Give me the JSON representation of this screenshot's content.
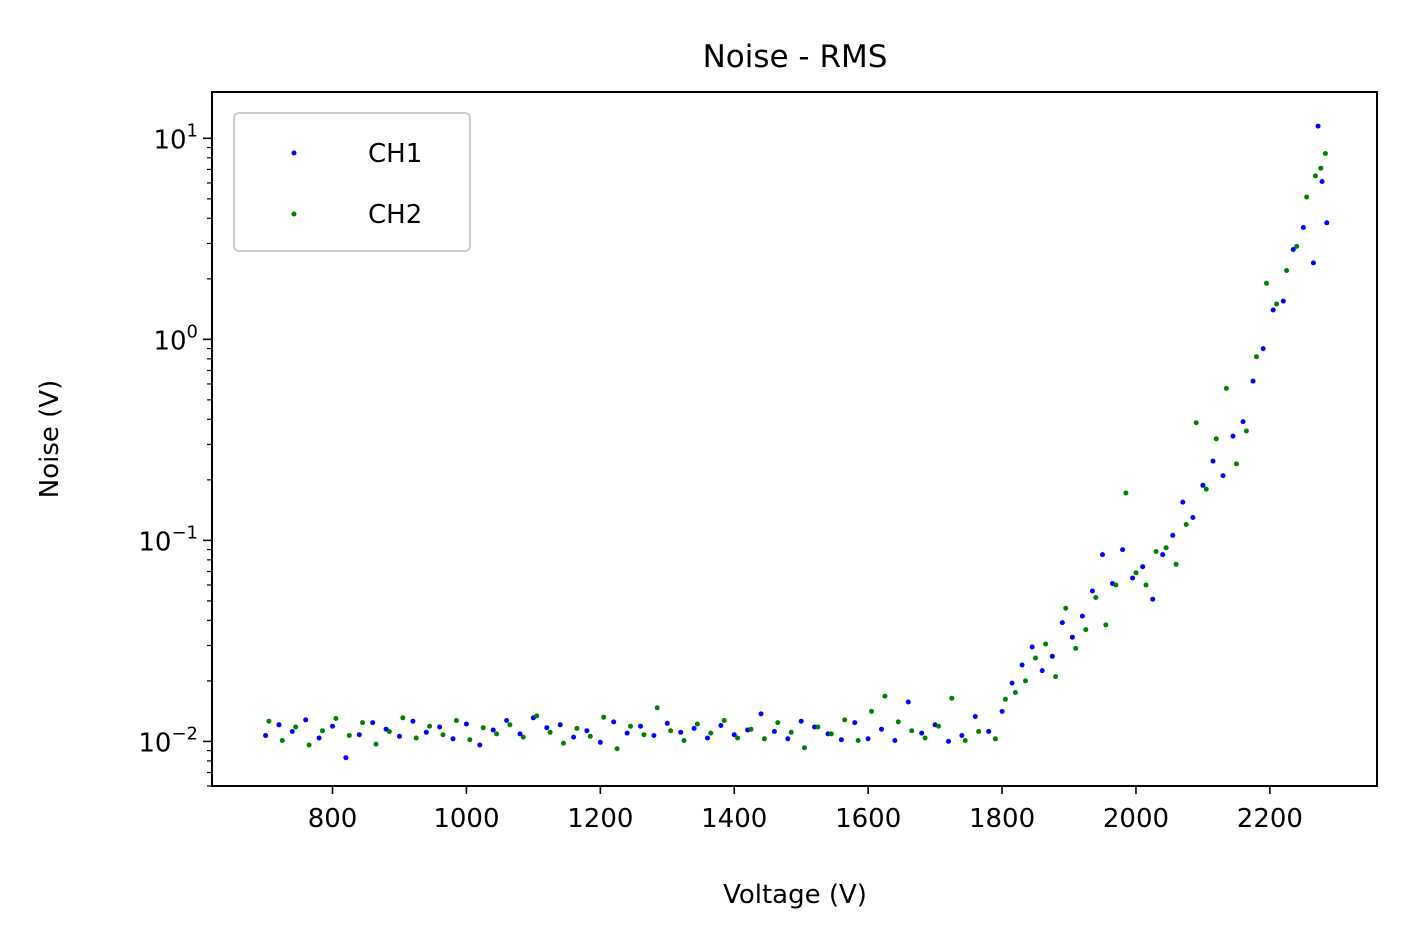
{
  "chart_data": {
    "type": "scatter",
    "title": "Noise - RMS",
    "xlabel": "Voltage (V)",
    "ylabel": "Noise (V)",
    "xlim": [
      620,
      2360
    ],
    "ylim": [
      0.006,
      17
    ],
    "yscale": "log",
    "xticks": [
      800,
      1000,
      1200,
      1400,
      1600,
      1800,
      2000,
      2200
    ],
    "yticks": [
      {
        "value": 0.01,
        "base": "10",
        "exp": "−2"
      },
      {
        "value": 0.1,
        "base": "10",
        "exp": "−1"
      },
      {
        "value": 1,
        "base": "10",
        "exp": "0"
      },
      {
        "value": 10,
        "base": "10",
        "exp": "1"
      }
    ],
    "grid": false,
    "legend_position": "top-left",
    "series": [
      {
        "name": "CH1",
        "color": "#0000ff",
        "points": [
          [
            700,
            0.0107
          ],
          [
            720,
            0.0121
          ],
          [
            740,
            0.0112
          ],
          [
            760,
            0.0128
          ],
          [
            780,
            0.0104
          ],
          [
            800,
            0.0119
          ],
          [
            820,
            0.0083
          ],
          [
            840,
            0.0108
          ],
          [
            860,
            0.0124
          ],
          [
            880,
            0.0115
          ],
          [
            900,
            0.0106
          ],
          [
            920,
            0.0126
          ],
          [
            940,
            0.0111
          ],
          [
            960,
            0.0118
          ],
          [
            980,
            0.0103
          ],
          [
            1000,
            0.0122
          ],
          [
            1020,
            0.0096
          ],
          [
            1040,
            0.0114
          ],
          [
            1060,
            0.0127
          ],
          [
            1080,
            0.0109
          ],
          [
            1100,
            0.0131
          ],
          [
            1120,
            0.0117
          ],
          [
            1140,
            0.0121
          ],
          [
            1160,
            0.0105
          ],
          [
            1180,
            0.0113
          ],
          [
            1200,
            0.0099
          ],
          [
            1220,
            0.0125
          ],
          [
            1240,
            0.011
          ],
          [
            1260,
            0.0119
          ],
          [
            1280,
            0.0107
          ],
          [
            1300,
            0.0123
          ],
          [
            1320,
            0.0111
          ],
          [
            1340,
            0.0116
          ],
          [
            1360,
            0.0104
          ],
          [
            1380,
            0.012
          ],
          [
            1400,
            0.0108
          ],
          [
            1420,
            0.0114
          ],
          [
            1440,
            0.0137
          ],
          [
            1460,
            0.0112
          ],
          [
            1480,
            0.0103
          ],
          [
            1500,
            0.0126
          ],
          [
            1520,
            0.0118
          ],
          [
            1540,
            0.0109
          ],
          [
            1560,
            0.0102
          ],
          [
            1580,
            0.0124
          ],
          [
            1600,
            0.0103
          ],
          [
            1620,
            0.0115
          ],
          [
            1640,
            0.0101
          ],
          [
            1660,
            0.0157
          ],
          [
            1680,
            0.011
          ],
          [
            1700,
            0.0121
          ],
          [
            1720,
            0.01
          ],
          [
            1740,
            0.0107
          ],
          [
            1760,
            0.0133
          ],
          [
            1780,
            0.0112
          ],
          [
            1800,
            0.0141
          ],
          [
            1815,
            0.0195
          ],
          [
            1830,
            0.024
          ],
          [
            1845,
            0.0295
          ],
          [
            1860,
            0.0225
          ],
          [
            1875,
            0.0265
          ],
          [
            1890,
            0.039
          ],
          [
            1905,
            0.033
          ],
          [
            1920,
            0.042
          ],
          [
            1935,
            0.056
          ],
          [
            1950,
            0.085
          ],
          [
            1965,
            0.061
          ],
          [
            1980,
            0.09
          ],
          [
            1995,
            0.065
          ],
          [
            2010,
            0.074
          ],
          [
            2025,
            0.051
          ],
          [
            2040,
            0.085
          ],
          [
            2055,
            0.106
          ],
          [
            2070,
            0.155
          ],
          [
            2085,
            0.13
          ],
          [
            2100,
            0.188
          ],
          [
            2115,
            0.248
          ],
          [
            2130,
            0.21
          ],
          [
            2145,
            0.33
          ],
          [
            2160,
            0.39
          ],
          [
            2175,
            0.62
          ],
          [
            2190,
            0.9
          ],
          [
            2205,
            1.4
          ],
          [
            2220,
            1.55
          ],
          [
            2235,
            2.8
          ],
          [
            2250,
            3.6
          ],
          [
            2265,
            2.4
          ],
          [
            2272,
            11.5
          ],
          [
            2278,
            6.1
          ],
          [
            2285,
            3.8
          ]
        ]
      },
      {
        "name": "CH2",
        "color": "#008000",
        "points": [
          [
            705,
            0.0126
          ],
          [
            725,
            0.0101
          ],
          [
            745,
            0.0118
          ],
          [
            765,
            0.0096
          ],
          [
            785,
            0.0113
          ],
          [
            805,
            0.013
          ],
          [
            825,
            0.0107
          ],
          [
            845,
            0.0124
          ],
          [
            865,
            0.0097
          ],
          [
            885,
            0.0112
          ],
          [
            905,
            0.0131
          ],
          [
            925,
            0.0104
          ],
          [
            945,
            0.0119
          ],
          [
            965,
            0.0108
          ],
          [
            985,
            0.0127
          ],
          [
            1005,
            0.0102
          ],
          [
            1025,
            0.0117
          ],
          [
            1045,
            0.0109
          ],
          [
            1065,
            0.0121
          ],
          [
            1085,
            0.0105
          ],
          [
            1105,
            0.0134
          ],
          [
            1125,
            0.0111
          ],
          [
            1145,
            0.0098
          ],
          [
            1165,
            0.0116
          ],
          [
            1185,
            0.0106
          ],
          [
            1205,
            0.0132
          ],
          [
            1225,
            0.0092
          ],
          [
            1245,
            0.0119
          ],
          [
            1265,
            0.0108
          ],
          [
            1285,
            0.0147
          ],
          [
            1305,
            0.0113
          ],
          [
            1325,
            0.0101
          ],
          [
            1345,
            0.0122
          ],
          [
            1365,
            0.011
          ],
          [
            1385,
            0.0127
          ],
          [
            1405,
            0.0104
          ],
          [
            1425,
            0.0115
          ],
          [
            1445,
            0.0103
          ],
          [
            1465,
            0.0124
          ],
          [
            1485,
            0.0111
          ],
          [
            1505,
            0.0093
          ],
          [
            1525,
            0.0118
          ],
          [
            1545,
            0.0109
          ],
          [
            1565,
            0.0128
          ],
          [
            1585,
            0.0101
          ],
          [
            1605,
            0.0141
          ],
          [
            1625,
            0.0168
          ],
          [
            1645,
            0.0125
          ],
          [
            1665,
            0.0113
          ],
          [
            1685,
            0.0104
          ],
          [
            1705,
            0.0119
          ],
          [
            1725,
            0.0164
          ],
          [
            1745,
            0.0101
          ],
          [
            1765,
            0.0112
          ],
          [
            1790,
            0.0103
          ],
          [
            1805,
            0.0162
          ],
          [
            1820,
            0.0175
          ],
          [
            1835,
            0.02
          ],
          [
            1850,
            0.026
          ],
          [
            1865,
            0.0305
          ],
          [
            1880,
            0.021
          ],
          [
            1895,
            0.046
          ],
          [
            1910,
            0.029
          ],
          [
            1925,
            0.036
          ],
          [
            1940,
            0.052
          ],
          [
            1955,
            0.038
          ],
          [
            1970,
            0.06
          ],
          [
            1985,
            0.172
          ],
          [
            2000,
            0.069
          ],
          [
            2015,
            0.06
          ],
          [
            2030,
            0.088
          ],
          [
            2045,
            0.092
          ],
          [
            2060,
            0.076
          ],
          [
            2075,
            0.12
          ],
          [
            2090,
            0.385
          ],
          [
            2105,
            0.18
          ],
          [
            2120,
            0.32
          ],
          [
            2135,
            0.57
          ],
          [
            2150,
            0.24
          ],
          [
            2165,
            0.35
          ],
          [
            2180,
            0.82
          ],
          [
            2195,
            1.9
          ],
          [
            2210,
            1.5
          ],
          [
            2225,
            2.2
          ],
          [
            2240,
            2.9
          ],
          [
            2255,
            5.1
          ],
          [
            2268,
            6.5
          ],
          [
            2276,
            7.1
          ],
          [
            2283,
            8.4
          ]
        ]
      }
    ]
  }
}
